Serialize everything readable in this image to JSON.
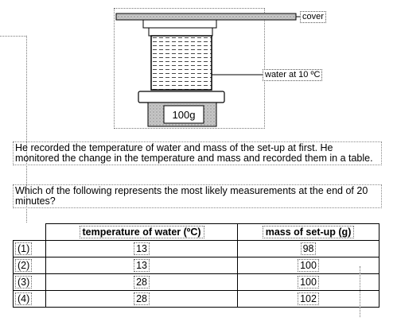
{
  "diagram": {
    "cover_label": "cover",
    "water_label": "water at 10 ºC",
    "scale_reading": "100g"
  },
  "text": {
    "paragraph1": "He recorded the temperature of water and mass of the set-up at first. He monitored the change in the temperature and mass and recorded them in a table.",
    "question": "Which of the following represents the most likely measurements at the end of 20 minutes?"
  },
  "table": {
    "headers": [
      "temperature of water (ºC)",
      "mass of set-up (g)"
    ],
    "rows": [
      {
        "option": "(1)",
        "temperature": "13",
        "mass": "98"
      },
      {
        "option": "(2)",
        "temperature": "13",
        "mass": "100"
      },
      {
        "option": "(3)",
        "temperature": "28",
        "mass": "100"
      },
      {
        "option": "(4)",
        "temperature": "28",
        "mass": "102"
      }
    ]
  }
}
